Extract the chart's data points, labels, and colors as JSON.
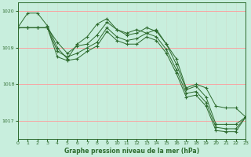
{
  "xlabel": "Graphe pression niveau de la mer (hPa)",
  "background_color": "#c8eedd",
  "line_color": "#2d6a2d",
  "grid_color_h": "#ff9999",
  "grid_color_v": "#ccddcc",
  "ylim": [
    1016.5,
    1020.25
  ],
  "xlim": [
    0,
    23
  ],
  "yticks": [
    1017,
    1018,
    1019,
    1020
  ],
  "xticks": [
    0,
    1,
    2,
    3,
    4,
    5,
    6,
    7,
    8,
    9,
    10,
    11,
    12,
    13,
    14,
    15,
    16,
    17,
    18,
    19,
    20,
    21,
    22,
    23
  ],
  "series": [
    [
      1019.55,
      1019.95,
      1019.95,
      1019.6,
      1019.0,
      1018.7,
      1019.1,
      1019.3,
      1019.65,
      1019.8,
      1019.5,
      1019.4,
      1019.5,
      1019.4,
      1019.5,
      1019.1,
      1018.7,
      1017.9,
      1018.0,
      1017.9,
      1017.4,
      1017.35,
      1017.35,
      1017.1
    ],
    [
      1019.55,
      1019.55,
      1019.55,
      1019.55,
      1019.15,
      1018.85,
      1019.05,
      1019.1,
      1019.35,
      1019.7,
      1019.5,
      1019.35,
      1019.4,
      1019.55,
      1019.45,
      1019.1,
      1018.55,
      1017.85,
      1017.95,
      1017.65,
      1016.9,
      1016.9,
      1016.9,
      1017.1
    ],
    [
      1019.55,
      1019.55,
      1019.55,
      1019.55,
      1018.9,
      1018.75,
      1018.85,
      1019.0,
      1019.15,
      1019.55,
      1019.3,
      1019.2,
      1019.25,
      1019.4,
      1019.3,
      1018.95,
      1018.4,
      1017.75,
      1017.8,
      1017.5,
      1016.82,
      1016.78,
      1016.78,
      1017.1
    ],
    [
      1019.55,
      1019.55,
      1019.55,
      1019.55,
      1018.75,
      1018.65,
      1018.7,
      1018.9,
      1019.05,
      1019.45,
      1019.2,
      1019.1,
      1019.1,
      1019.3,
      1019.2,
      1018.85,
      1018.3,
      1017.65,
      1017.7,
      1017.4,
      1016.73,
      1016.7,
      1016.7,
      1017.1
    ]
  ]
}
